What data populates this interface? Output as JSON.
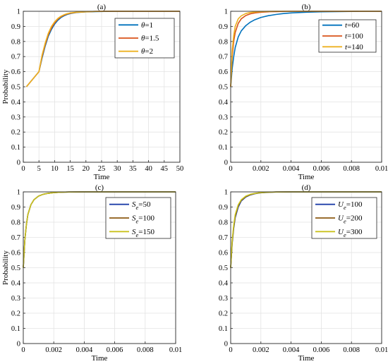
{
  "chart_data": [
    {
      "type": "line",
      "title": "(a)",
      "xlabel": "Time",
      "ylabel": "Probability",
      "xlim": [
        0,
        50
      ],
      "ylim": [
        0,
        1
      ],
      "xticks": [
        "0",
        "5",
        "10",
        "15",
        "20",
        "25",
        "30",
        "35",
        "40",
        "45",
        "50"
      ],
      "yticks": [
        "0",
        "0.1",
        "0.2",
        "0.3",
        "0.4",
        "0.5",
        "0.6",
        "0.7",
        "0.8",
        "0.9",
        "1"
      ],
      "grid": true,
      "legend": "top-right",
      "series": [
        {
          "name": "θ=1",
          "color": "#0072BD",
          "x": [
            1,
            5,
            6,
            7,
            8,
            9,
            10,
            11,
            12,
            13,
            14,
            15,
            17,
            20,
            23,
            26,
            30,
            35,
            40,
            45,
            50
          ],
          "y": [
            0.5,
            0.6,
            0.69,
            0.77,
            0.835,
            0.88,
            0.915,
            0.94,
            0.958,
            0.97,
            0.979,
            0.985,
            0.992,
            0.996,
            0.998,
            0.999,
            1.0,
            1.0,
            1.0,
            1.0,
            1.0
          ]
        },
        {
          "name": "θ=1.5",
          "color": "#D95319",
          "x": [
            1,
            5,
            6,
            7,
            8,
            9,
            10,
            11,
            12,
            13,
            14,
            15,
            17,
            20,
            23,
            26,
            30,
            35,
            40,
            45,
            50
          ],
          "y": [
            0.5,
            0.6,
            0.7,
            0.78,
            0.845,
            0.89,
            0.923,
            0.947,
            0.963,
            0.974,
            0.982,
            0.987,
            0.993,
            0.997,
            0.999,
            1.0,
            1.0,
            1.0,
            1.0,
            1.0,
            1.0
          ]
        },
        {
          "name": "θ=2",
          "color": "#EDB120",
          "x": [
            1,
            5,
            6,
            7,
            8,
            9,
            10,
            11,
            12,
            13,
            14,
            15,
            17,
            20,
            23,
            26,
            30,
            35,
            40,
            45,
            50
          ],
          "y": [
            0.5,
            0.6,
            0.71,
            0.79,
            0.855,
            0.9,
            0.93,
            0.952,
            0.967,
            0.977,
            0.984,
            0.989,
            0.994,
            0.997,
            0.999,
            1.0,
            1.0,
            1.0,
            1.0,
            1.0,
            1.0
          ]
        }
      ]
    },
    {
      "type": "line",
      "title": "(b)",
      "xlabel": "Time",
      "ylabel": "",
      "xlim": [
        0,
        0.01
      ],
      "ylim": [
        0,
        1
      ],
      "xticks": [
        "0",
        "0.002",
        "0.004",
        "0.006",
        "0.008",
        "0.01"
      ],
      "yticks": [
        "0",
        "0.1",
        "0.2",
        "0.3",
        "0.4",
        "0.5",
        "0.6",
        "0.7",
        "0.8",
        "0.9",
        "1"
      ],
      "grid": true,
      "legend": "top-right",
      "series": [
        {
          "name": "t=60",
          "color": "#0072BD",
          "x": [
            0,
            0.0001,
            0.0002,
            0.0003,
            0.0005,
            0.0007,
            0.001,
            0.0013,
            0.0016,
            0.002,
            0.0025,
            0.003,
            0.0035,
            0.004,
            0.005,
            0.006,
            0.007,
            0.008,
            0.009,
            0.01
          ],
          "y": [
            0.5,
            0.62,
            0.7,
            0.76,
            0.83,
            0.87,
            0.905,
            0.928,
            0.944,
            0.959,
            0.971,
            0.979,
            0.985,
            0.989,
            0.994,
            0.997,
            0.998,
            0.999,
            1.0,
            1.0
          ]
        },
        {
          "name": "t=100",
          "color": "#D95319",
          "x": [
            0,
            0.0001,
            0.0002,
            0.0003,
            0.0005,
            0.0007,
            0.001,
            0.0013,
            0.0016,
            0.002,
            0.0025,
            0.003,
            0.0035,
            0.004,
            0.005,
            0.006,
            0.007,
            0.008,
            0.009,
            0.01
          ],
          "y": [
            0.5,
            0.7,
            0.8,
            0.86,
            0.92,
            0.95,
            0.972,
            0.983,
            0.989,
            0.994,
            0.997,
            0.998,
            0.999,
            1.0,
            1.0,
            1.0,
            1.0,
            1.0,
            1.0,
            1.0
          ]
        },
        {
          "name": "t=140",
          "color": "#EDB120",
          "x": [
            0,
            0.0001,
            0.0002,
            0.0003,
            0.0005,
            0.0007,
            0.001,
            0.0013,
            0.0016,
            0.002,
            0.0025,
            0.003,
            0.0035,
            0.004,
            0.005,
            0.006,
            0.007,
            0.008,
            0.009,
            0.01
          ],
          "y": [
            0.5,
            0.74,
            0.84,
            0.9,
            0.95,
            0.97,
            0.985,
            0.992,
            0.995,
            0.998,
            0.999,
            1.0,
            1.0,
            1.0,
            1.0,
            1.0,
            1.0,
            1.0,
            1.0,
            1.0
          ]
        }
      ]
    },
    {
      "type": "line",
      "title": "(c)",
      "xlabel": "Time",
      "ylabel": "Probability",
      "xlim": [
        0,
        0.01
      ],
      "ylim": [
        0,
        1
      ],
      "xticks": [
        "0",
        "0.002",
        "0.004",
        "0.006",
        "0.008",
        "0.01"
      ],
      "yticks": [
        "0",
        "0.1",
        "0.2",
        "0.3",
        "0.4",
        "0.5",
        "0.6",
        "0.7",
        "0.8",
        "0.9",
        "1"
      ],
      "grid": true,
      "legend": "top-right",
      "series": [
        {
          "name": "Se=50",
          "label_main": "S",
          "label_sub": "e",
          "label_rest": "=50",
          "color": "#1F3FA8",
          "x": [
            0,
            0.0001,
            0.0002,
            0.0003,
            0.0005,
            0.0007,
            0.001,
            0.0013,
            0.0016,
            0.002,
            0.0025,
            0.003,
            0.004,
            0.005,
            0.006,
            0.007,
            0.008,
            0.009,
            0.01
          ],
          "y": [
            0.5,
            0.68,
            0.78,
            0.85,
            0.915,
            0.948,
            0.972,
            0.984,
            0.99,
            0.995,
            0.998,
            0.999,
            1.0,
            1.0,
            1.0,
            1.0,
            1.0,
            1.0,
            1.0
          ]
        },
        {
          "name": "Se=100",
          "label_main": "S",
          "label_sub": "e",
          "label_rest": "=100",
          "color": "#8B5A12",
          "x": [
            0,
            0.0001,
            0.0002,
            0.0003,
            0.0005,
            0.0007,
            0.001,
            0.0013,
            0.0016,
            0.002,
            0.0025,
            0.003,
            0.004,
            0.005,
            0.006,
            0.007,
            0.008,
            0.009,
            0.01
          ],
          "y": [
            0.5,
            0.68,
            0.78,
            0.85,
            0.915,
            0.948,
            0.972,
            0.984,
            0.99,
            0.995,
            0.998,
            0.999,
            1.0,
            1.0,
            1.0,
            1.0,
            1.0,
            1.0,
            1.0
          ]
        },
        {
          "name": "Se=150",
          "label_main": "S",
          "label_sub": "e",
          "label_rest": "=150",
          "color": "#C9C21E",
          "x": [
            0,
            0.0001,
            0.0002,
            0.0003,
            0.0005,
            0.0007,
            0.001,
            0.0013,
            0.0016,
            0.002,
            0.0025,
            0.003,
            0.004,
            0.005,
            0.006,
            0.007,
            0.008,
            0.009,
            0.01
          ],
          "y": [
            0.5,
            0.68,
            0.78,
            0.85,
            0.915,
            0.948,
            0.972,
            0.984,
            0.99,
            0.995,
            0.998,
            0.999,
            1.0,
            1.0,
            1.0,
            1.0,
            1.0,
            1.0,
            1.0
          ]
        }
      ]
    },
    {
      "type": "line",
      "title": "(d)",
      "xlabel": "Time",
      "ylabel": "",
      "xlim": [
        0,
        0.01
      ],
      "ylim": [
        0,
        1
      ],
      "xticks": [
        "0",
        "0.002",
        "0.004",
        "0.006",
        "0.008",
        "0.01"
      ],
      "yticks": [
        "0",
        "0.1",
        "0.2",
        "0.3",
        "0.4",
        "0.5",
        "0.6",
        "0.7",
        "0.8",
        "0.9",
        "1"
      ],
      "grid": true,
      "legend": "top-right",
      "series": [
        {
          "name": "Ue=100",
          "label_main": "U",
          "label_sub": "e",
          "label_rest": "=100",
          "color": "#1F3FA8",
          "x": [
            0,
            0.0001,
            0.0002,
            0.0003,
            0.0005,
            0.0007,
            0.001,
            0.0013,
            0.0016,
            0.002,
            0.0025,
            0.003,
            0.004,
            0.005,
            0.006,
            0.007,
            0.008,
            0.009,
            0.01
          ],
          "y": [
            0.5,
            0.66,
            0.76,
            0.83,
            0.9,
            0.94,
            0.966,
            0.98,
            0.988,
            0.994,
            0.997,
            0.999,
            1.0,
            1.0,
            1.0,
            1.0,
            1.0,
            1.0,
            1.0
          ]
        },
        {
          "name": "Ue=200",
          "label_main": "U",
          "label_sub": "e",
          "label_rest": "=200",
          "color": "#8B5A12",
          "x": [
            0,
            0.0001,
            0.0002,
            0.0003,
            0.0005,
            0.0007,
            0.001,
            0.0013,
            0.0016,
            0.002,
            0.0025,
            0.003,
            0.004,
            0.005,
            0.006,
            0.007,
            0.008,
            0.009,
            0.01
          ],
          "y": [
            0.5,
            0.67,
            0.77,
            0.84,
            0.91,
            0.945,
            0.969,
            0.982,
            0.989,
            0.995,
            0.998,
            0.999,
            1.0,
            1.0,
            1.0,
            1.0,
            1.0,
            1.0,
            1.0
          ]
        },
        {
          "name": "Ue=300",
          "label_main": "U",
          "label_sub": "e",
          "label_rest": "=300",
          "color": "#C9C21E",
          "x": [
            0,
            0.0001,
            0.0002,
            0.0003,
            0.0005,
            0.0007,
            0.001,
            0.0013,
            0.0016,
            0.002,
            0.0025,
            0.003,
            0.004,
            0.005,
            0.006,
            0.007,
            0.008,
            0.009,
            0.01
          ],
          "y": [
            0.5,
            0.68,
            0.78,
            0.85,
            0.915,
            0.948,
            0.972,
            0.984,
            0.99,
            0.995,
            0.998,
            0.999,
            1.0,
            1.0,
            1.0,
            1.0,
            1.0,
            1.0,
            1.0
          ]
        }
      ]
    }
  ]
}
